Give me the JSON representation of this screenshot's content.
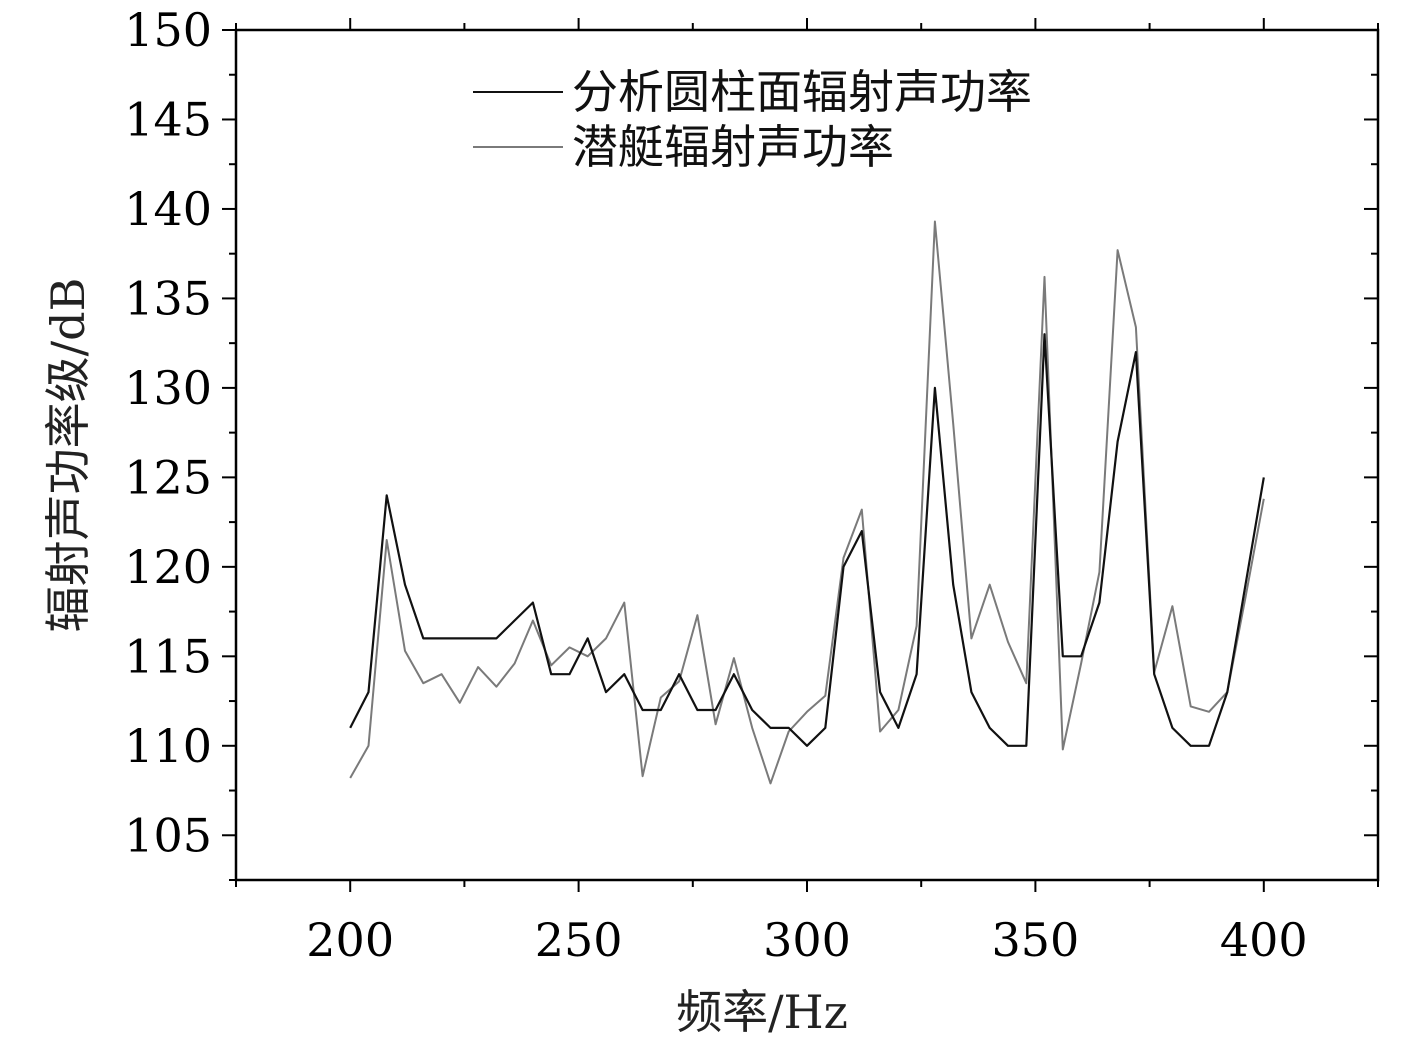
{
  "chart_data": {
    "type": "line",
    "xlabel": "频率/Hz",
    "ylabel": "辐射声功率级/dB",
    "xlim": [
      175,
      425
    ],
    "ylim": [
      102.5,
      150
    ],
    "xticks": [
      200,
      250,
      300,
      350,
      400
    ],
    "yticks": [
      105,
      110,
      115,
      120,
      125,
      130,
      135,
      140,
      145,
      150
    ],
    "grid": false,
    "legend_position": "top-center",
    "series": [
      {
        "name": "分析圆柱面辐射声功率",
        "color": "#111111",
        "x": [
          200,
          204,
          208,
          212,
          216,
          220,
          224,
          228,
          232,
          236,
          240,
          244,
          248,
          252,
          256,
          260,
          264,
          268,
          272,
          276,
          280,
          284,
          288,
          292,
          296,
          300,
          304,
          308,
          312,
          316,
          320,
          324,
          328,
          332,
          336,
          340,
          344,
          348,
          352,
          356,
          360,
          364,
          368,
          372,
          376,
          380,
          384,
          388,
          392,
          396,
          400
        ],
        "y": [
          111,
          113,
          124,
          119,
          116,
          116,
          116,
          116,
          116,
          117,
          118,
          114,
          114,
          116,
          113,
          114,
          112,
          112,
          114,
          112,
          112,
          114,
          112,
          111,
          111,
          110,
          111,
          120,
          122,
          113,
          111,
          114,
          130,
          119,
          113,
          111,
          110,
          110,
          133,
          115,
          115,
          118,
          127,
          132,
          114,
          111,
          110,
          110,
          113,
          119,
          125
        ]
      },
      {
        "name": "潜艇辐射声功率",
        "color": "#7a7a7a",
        "x": [
          200,
          204,
          208,
          212,
          216,
          220,
          224,
          228,
          232,
          236,
          240,
          244,
          248,
          252,
          256,
          260,
          264,
          268,
          272,
          276,
          280,
          284,
          288,
          292,
          296,
          300,
          304,
          308,
          312,
          316,
          320,
          324,
          328,
          332,
          336,
          340,
          344,
          348,
          352,
          356,
          360,
          364,
          368,
          372,
          376,
          380,
          384,
          388,
          392,
          396,
          400
        ],
        "y": [
          108.2,
          110,
          121.5,
          115.3,
          113.5,
          114,
          112.4,
          114.4,
          113.3,
          114.6,
          117,
          114.5,
          115.5,
          115,
          116,
          118,
          108.3,
          112.7,
          113.6,
          117.3,
          111.2,
          114.9,
          111,
          107.9,
          110.8,
          111.9,
          112.8,
          120.5,
          123.2,
          110.8,
          112,
          116.7,
          139.3,
          128,
          116,
          119,
          115.8,
          113.5,
          136.2,
          109.8,
          114.6,
          119.7,
          137.7,
          133.4,
          114.1,
          117.8,
          112.2,
          111.9,
          113,
          118.3,
          123.8
        ]
      }
    ]
  }
}
